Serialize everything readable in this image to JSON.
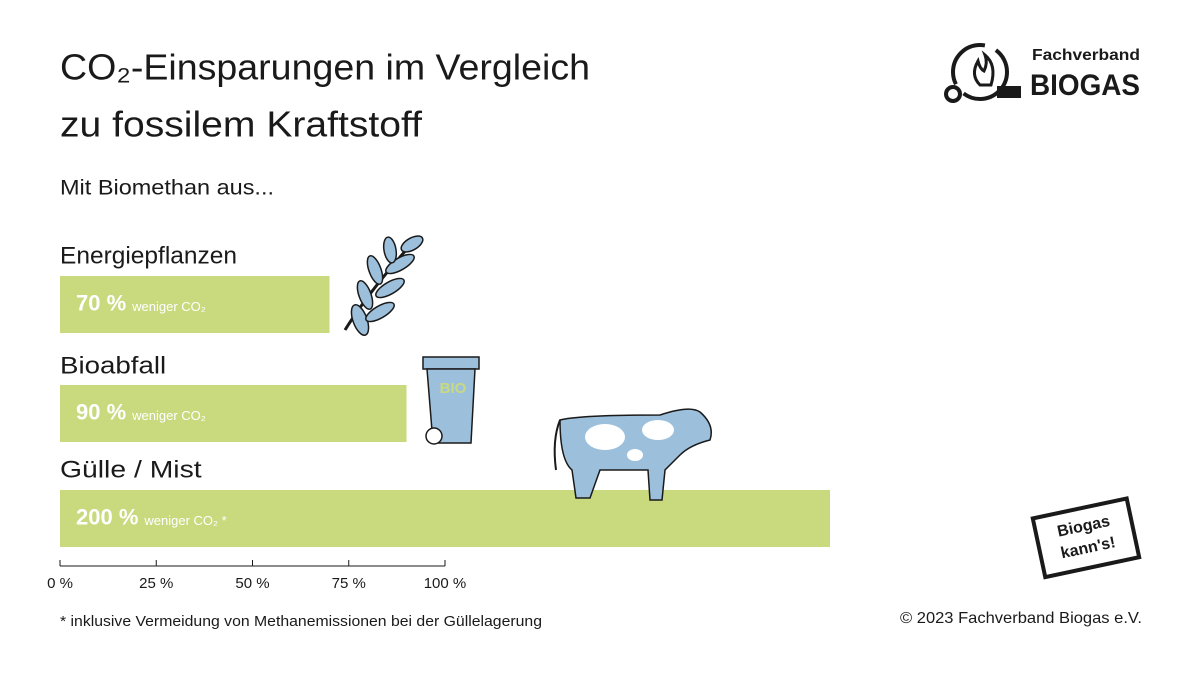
{
  "chart_data": {
    "type": "hbar",
    "title": [
      "CO₂-Einsparungen im Vergleich",
      "zu fossilem Kraftstoff"
    ],
    "subtitle": "Mit Biomethan aus...",
    "categories": [
      "Energiepflanzen",
      "Bioabfall",
      "Gülle / Mist"
    ],
    "values": [
      70,
      90,
      200
    ],
    "value_labels": [
      "70 %",
      "90 %",
      "200 %"
    ],
    "value_notes": [
      "weniger CO₂",
      "weniger CO₂",
      "weniger CO₂ *"
    ],
    "color": "#c9d97e",
    "xlim": [
      0,
      100
    ],
    "xticks": [
      {
        "value": 0,
        "label": "0 %"
      },
      {
        "value": 25,
        "label": "25 %"
      },
      {
        "value": 50,
        "label": "50 %"
      },
      {
        "value": 75,
        "label": "75 %"
      },
      {
        "value": 100,
        "label": "100 %"
      }
    ],
    "footnote": "* inklusive Vermeidung von Methanemissionen bei der Güllelagerung",
    "copyright": "© 2023 Fachverband Biogas e.V.",
    "logo": {
      "line1": "Fachverband",
      "line2": "BIOGAS"
    },
    "badge": [
      "Biogas",
      "kann's!"
    ],
    "bin_label": "BIO"
  }
}
